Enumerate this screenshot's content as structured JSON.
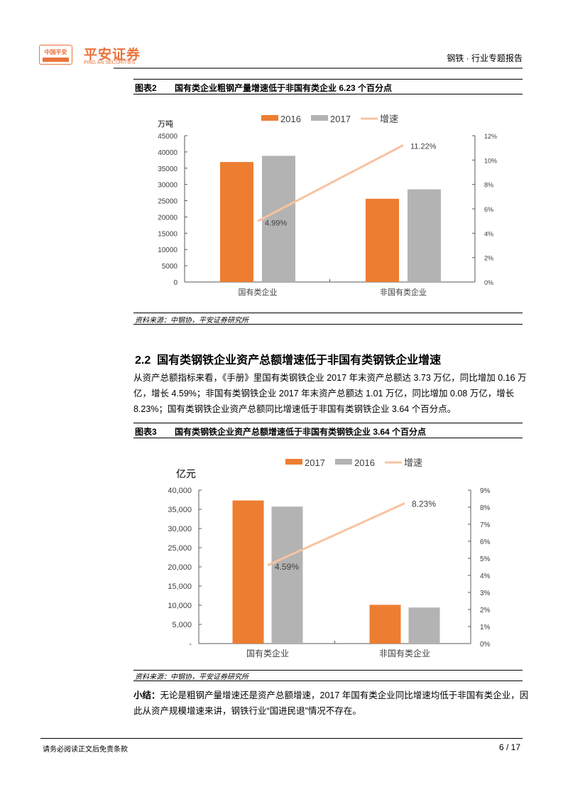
{
  "header": {
    "logo_mark_text": "中国平安",
    "brand_cn": "平安证券",
    "brand_en": "PING AN SECURITIES",
    "report_type": "钢铁 · 行业专题报告"
  },
  "figure2": {
    "number": "图表2",
    "title": "国有类企业粗钢产量增速低于非国有类企业 6.23 个百分点",
    "source": "资料来源：中钢协，平安证券研究所"
  },
  "section": {
    "heading": "2.2  国有类钢铁企业资产总额增速低于非国有类钢铁企业增速",
    "paragraph": "从资产总额指标来看，《手册》里国有类钢铁企业 2017 年末资产总额达 3.73 万亿，同比增加 0.16 万亿，增长 4.59%；非国有类钢铁企业 2017 年末资产总额达 1.01 万亿，同比增加 0.08 万亿，增长 8.23%；国有类钢铁企业资产总额同比增速低于非国有类钢铁企业 3.64 个百分点。"
  },
  "figure3": {
    "number": "图表3",
    "title": "国有类钢铁企业资产总额增速低于非国有类钢铁企业 3.64 个百分点",
    "source": "资料来源：中钢协，平安证券研究所"
  },
  "summary": {
    "label": "小结：",
    "text": "无论是粗钢产量增速还是资产总额增速，2017 年国有类企业同比增速均低于非国有类企业，因此从资产规模增速来讲，钢铁行业“国进民退”情况不存在。"
  },
  "footer": {
    "disclaimer": "请务必阅读正文后免责条款",
    "page": "6 / 17"
  },
  "chart_data": [
    {
      "type": "bar",
      "categories": [
        "国有类企业",
        "非国有类企业"
      ],
      "ylabel": "万吨",
      "ylim": [
        0,
        45000
      ],
      "yticks": [
        "0",
        "5000",
        "10000",
        "15000",
        "20000",
        "25000",
        "30000",
        "35000",
        "40000",
        "45000"
      ],
      "y2lim": [
        0,
        12
      ],
      "y2ticks": [
        "0%",
        "2%",
        "4%",
        "6%",
        "8%",
        "10%",
        "12%"
      ],
      "legend_placement": "top",
      "series": [
        {
          "name": "2016",
          "type": "bar",
          "color": "#ed7d31",
          "values": [
            36900,
            25600
          ]
        },
        {
          "name": "2017",
          "type": "bar",
          "color": "#b3b3b3",
          "values": [
            38800,
            28500
          ]
        },
        {
          "name": "增速",
          "type": "line",
          "axis": "right",
          "color": "#f8c3a0",
          "values": [
            4.99,
            11.22
          ],
          "labels": [
            "4.99%",
            "11.22%"
          ]
        }
      ]
    },
    {
      "type": "bar",
      "categories": [
        "国有类企业",
        "非国有类企业"
      ],
      "ylabel": "亿元",
      "ylim": [
        0,
        40000
      ],
      "yticks": [
        "-",
        "5,000",
        "10,000",
        "15,000",
        "20,000",
        "25,000",
        "30,000",
        "35,000",
        "40,000"
      ],
      "y2lim": [
        0,
        9
      ],
      "y2ticks": [
        "0%",
        "1%",
        "2%",
        "3%",
        "4%",
        "5%",
        "6%",
        "7%",
        "8%",
        "9%"
      ],
      "legend_placement": "top",
      "series": [
        {
          "name": "2017",
          "type": "bar",
          "color": "#ed7d31",
          "values": [
            37300,
            10100
          ]
        },
        {
          "name": "2016",
          "type": "bar",
          "color": "#b3b3b3",
          "values": [
            35700,
            9400
          ]
        },
        {
          "name": "增速",
          "type": "line",
          "axis": "right",
          "color": "#f8c3a0",
          "values": [
            4.59,
            8.23
          ],
          "labels": [
            "4.59%",
            "8.23%"
          ]
        }
      ]
    }
  ]
}
